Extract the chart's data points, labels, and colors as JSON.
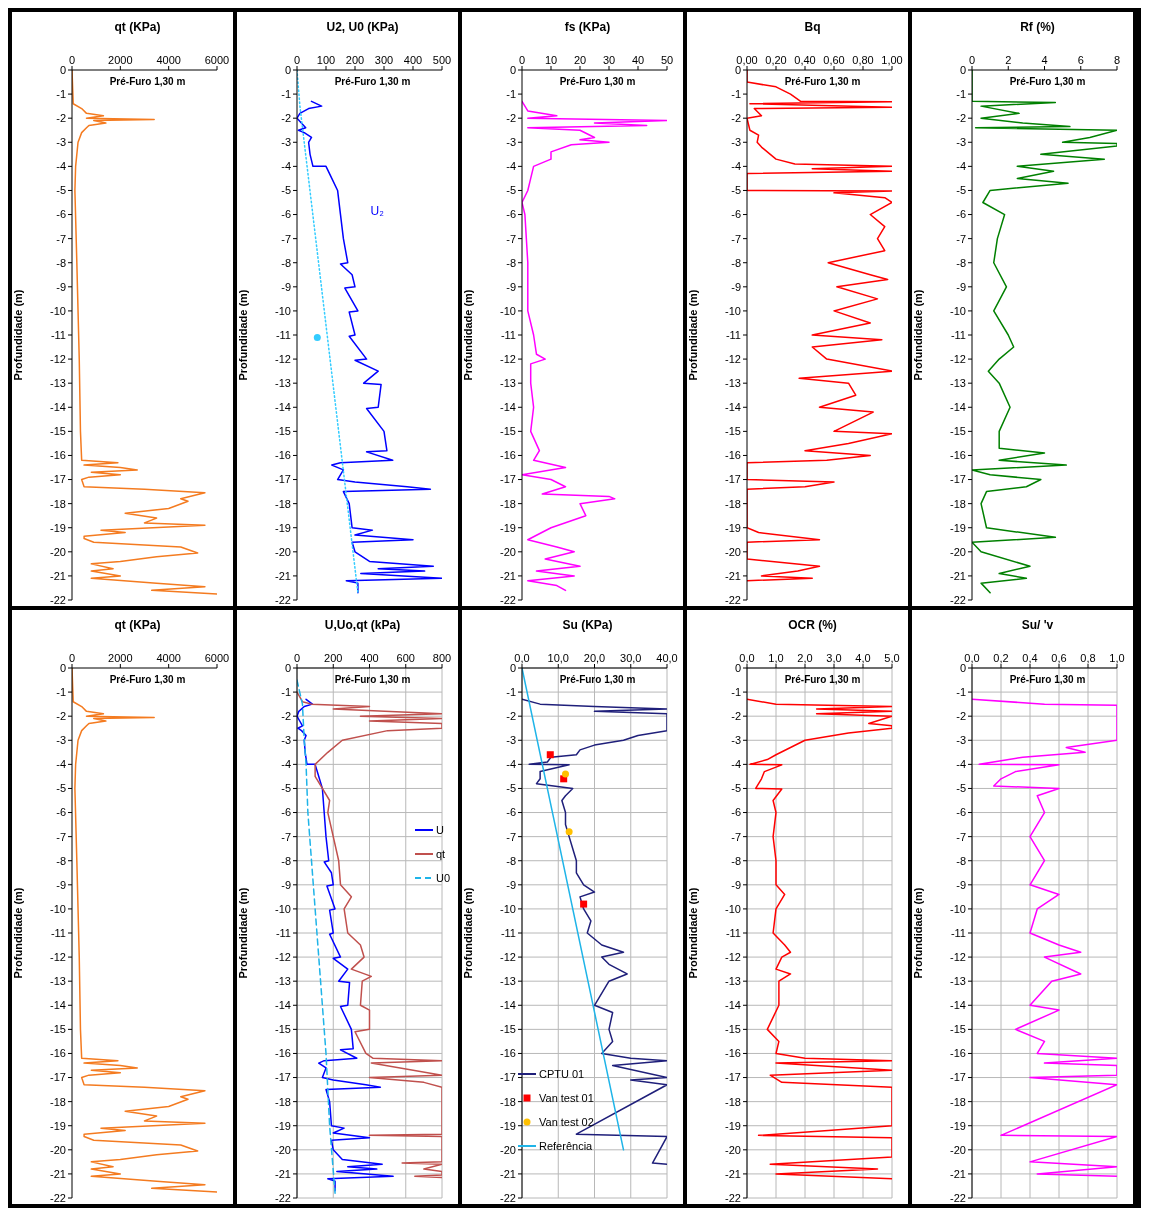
{
  "chart_data": [
    {
      "type": "line",
      "title": "qt (KPa)",
      "ylabel": "Profundidade (m)",
      "annotations": [
        "Pré-Furo 1,30 m"
      ],
      "xlim": [
        0,
        6000
      ],
      "xticks": [
        0,
        2000,
        4000,
        6000
      ],
      "ylim": [
        -22,
        0
      ],
      "yticks": [
        0,
        -1,
        -2,
        -3,
        -4,
        -5,
        -6,
        -7,
        -8,
        -9,
        -10,
        -11,
        -12,
        -13,
        -14,
        -15,
        -16,
        -17,
        -18,
        -19,
        -20,
        -21,
        -22
      ],
      "series": [
        {
          "color": "#f47b20",
          "x": [
            0,
            50,
            400,
            600,
            1300,
            600,
            3400,
            900,
            1400,
            700,
            600,
            400,
            250,
            150,
            120,
            200,
            300,
            350,
            400,
            1900,
            500,
            2000,
            2700,
            800,
            2000,
            700,
            400,
            500,
            3000,
            5500,
            4500,
            4800,
            4000,
            2200,
            3500,
            3000,
            5500,
            1200,
            2200,
            500,
            500,
            900,
            4500,
            5200,
            3500,
            2000,
            800,
            1700,
            800,
            2000,
            800,
            3500,
            5500,
            3300,
            6000
          ],
          "values": [
            0,
            -1.4,
            -1.6,
            -1.8,
            -1.9,
            -2.0,
            -2.05,
            -2.1,
            -2.2,
            -2.3,
            -2.4,
            -2.6,
            -3,
            -4,
            -5,
            -8,
            -12,
            -15,
            -16.2,
            -16.3,
            -16.4,
            -16.5,
            -16.6,
            -16.7,
            -16.8,
            -16.9,
            -17.0,
            -17.3,
            -17.4,
            -17.55,
            -17.8,
            -17.9,
            -18.2,
            -18.4,
            -18.6,
            -18.8,
            -18.9,
            -19.1,
            -19.2,
            -19.35,
            -19.45,
            -19.6,
            -19.8,
            -20.05,
            -20.2,
            -20.4,
            -20.5,
            -20.7,
            -20.8,
            -21.0,
            -21.1,
            -21.3,
            -21.45,
            -21.6,
            -21.75
          ]
        }
      ]
    },
    {
      "type": "line",
      "title": "U2, U0 (KPa)",
      "ylabel": "Profundidade (m)",
      "annotations": [
        "Pré-Furo 1,30 m"
      ],
      "xlim": [
        0,
        500
      ],
      "xticks": [
        0,
        100,
        200,
        300,
        400,
        500
      ],
      "ylim": [
        -22,
        0
      ],
      "yticks": [
        0,
        -1,
        -2,
        -3,
        -4,
        -5,
        -6,
        -7,
        -8,
        -9,
        -10,
        -11,
        -12,
        -13,
        -14,
        -15,
        -16,
        -17,
        -18,
        -19,
        -20,
        -21,
        -22
      ],
      "series": [
        {
          "name": "U₂",
          "color": "#0000ff",
          "x": [
            50,
            85,
            40,
            10,
            0,
            15,
            30,
            5,
            25,
            50,
            40,
            45,
            55,
            100,
            120,
            140,
            150,
            160,
            175,
            150,
            190,
            200,
            165,
            210,
            180,
            200,
            180,
            240,
            200,
            280,
            230,
            290,
            280,
            240,
            300,
            310,
            240,
            330,
            150,
            120,
            160,
            140,
            200,
            380,
            460,
            160,
            180,
            190,
            260,
            200,
            400,
            190,
            200,
            250,
            470,
            280,
            440,
            220,
            500,
            170,
            210,
            210
          ],
          "values": [
            -1.3,
            -1.5,
            -1.6,
            -1.8,
            -2.0,
            -2.2,
            -2.4,
            -2.5,
            -2.6,
            -2.8,
            -3.0,
            -3.5,
            -4.0,
            -4.0,
            -4.5,
            -5.0,
            -6.0,
            -7.0,
            -8.0,
            -8.05,
            -8.5,
            -9.0,
            -9.05,
            -10.0,
            -10.05,
            -11.0,
            -11.05,
            -12.0,
            -12.05,
            -12.5,
            -13.0,
            -13.05,
            -14.0,
            -14.05,
            -15.0,
            -15.8,
            -15.85,
            -16.2,
            -16.3,
            -16.4,
            -16.6,
            -17.0,
            -17.1,
            -17.3,
            -17.4,
            -17.5,
            -18.0,
            -19.0,
            -19.1,
            -19.3,
            -19.5,
            -19.6,
            -20.0,
            -20.4,
            -20.6,
            -20.7,
            -20.8,
            -20.9,
            -21.1,
            -21.2,
            -21.3,
            -21.7
          ]
        },
        {
          "color": "#33ccff",
          "line_style": "dotted",
          "x": [
            0,
            10,
            210
          ],
          "values": [
            0,
            -1.5,
            -21.7
          ]
        },
        {
          "type": "scatter",
          "marker": "circle",
          "color": "#33ccff",
          "x": [
            70
          ],
          "values": [
            -11.1
          ]
        }
      ]
    },
    {
      "type": "line",
      "title": "fs (KPa)",
      "ylabel": "Profundidade (m)",
      "annotations": [
        "Pré-Furo 1,30 m"
      ],
      "xlim": [
        0,
        50
      ],
      "xticks": [
        0,
        10,
        20,
        30,
        40,
        50
      ],
      "ylim": [
        -22,
        0
      ],
      "yticks": [
        0,
        -1,
        -2,
        -3,
        -4,
        -5,
        -6,
        -7,
        -8,
        -9,
        -10,
        -11,
        -12,
        -13,
        -14,
        -15,
        -16,
        -17,
        -18,
        -19,
        -20,
        -21,
        -22
      ],
      "series": [
        {
          "color": "#ff00ff",
          "x": [
            0,
            2,
            12,
            2,
            50,
            25,
            43,
            2,
            20,
            25,
            20,
            30,
            17,
            10,
            10,
            4,
            3,
            2,
            0,
            1,
            2,
            2,
            4,
            5,
            8,
            3,
            3,
            4,
            3,
            6,
            4,
            15,
            0,
            10,
            15,
            7,
            30,
            32,
            20,
            22,
            10,
            2,
            12,
            18,
            8,
            20,
            5,
            18,
            2,
            12,
            15
          ],
          "values": [
            -1.3,
            -1.7,
            -1.9,
            -2.0,
            -2.1,
            -2.2,
            -2.3,
            -2.4,
            -2.5,
            -2.8,
            -2.9,
            -3.0,
            -3.1,
            -3.4,
            -3.7,
            -4,
            -4.5,
            -5,
            -5.5,
            -6,
            -8,
            -10,
            -11,
            -11.8,
            -12,
            -12.2,
            -13,
            -14,
            -15,
            -15.8,
            -16.2,
            -16.5,
            -16.8,
            -17,
            -17.3,
            -17.6,
            -17.7,
            -17.8,
            -18,
            -18.5,
            -19,
            -19.5,
            -19.8,
            -20,
            -20.3,
            -20.6,
            -20.8,
            -21,
            -21.2,
            -21.4,
            -21.6
          ]
        }
      ]
    },
    {
      "type": "line",
      "title": "Bq",
      "ylabel": "Profundidade (m)",
      "annotations": [
        "Pré-Furo 1,30 m"
      ],
      "xlim": [
        0,
        1
      ],
      "xticks": [
        {
          "value": 0,
          "label": "0,00"
        },
        {
          "value": 0.2,
          "label": "0,20"
        },
        {
          "value": 0.4,
          "label": "0,40"
        },
        {
          "value": 0.6,
          "label": "0,60"
        },
        {
          "value": 0.8,
          "label": "0,80"
        },
        {
          "value": 1,
          "label": "1,00"
        }
      ],
      "ylim": [
        -22,
        0
      ],
      "yticks": [
        0,
        -1,
        -2,
        -3,
        -4,
        -5,
        -6,
        -7,
        -8,
        -9,
        -10,
        -11,
        -12,
        -13,
        -14,
        -15,
        -16,
        -17,
        -18,
        -19,
        -20,
        -21,
        -22
      ],
      "series": [
        {
          "color": "#ff0000",
          "x": [
            0,
            0,
            0.2,
            0.3,
            0.37,
            1.0,
            0.02,
            1.0,
            0.05,
            0.1,
            0,
            0.02,
            0.08,
            0.07,
            0.1,
            0.2,
            0.33,
            1.0,
            0.45,
            1.0,
            0,
            0,
            1.0,
            0.6,
            0.95,
            1.0,
            0.85,
            0.95,
            0.9,
            0.95,
            0.56,
            0.85,
            0.97,
            0.62,
            0.9,
            0.6,
            0.85,
            0.45,
            0.93,
            0.45,
            0.55,
            1.0,
            0.36,
            0.7,
            0.75,
            0.5,
            0.87,
            0.6,
            1.0,
            0.7,
            0.4,
            0.85,
            0.55,
            0,
            0,
            0.6,
            0.4,
            0,
            0,
            0.08,
            0.5,
            0,
            0,
            0.5,
            0.35,
            0.1,
            0.45,
            0
          ],
          "values": [
            0,
            -0.5,
            -0.7,
            -1.0,
            -1.3,
            -1.32,
            -1.4,
            -1.55,
            -1.6,
            -1.9,
            -2,
            -2.5,
            -2.7,
            -3.0,
            -3.2,
            -3.7,
            -3.9,
            -4.0,
            -4.1,
            -4.2,
            -4.3,
            -5,
            -5.02,
            -5.1,
            -5.3,
            -5.5,
            -6,
            -6.5,
            -7,
            -7.5,
            -8,
            -8.5,
            -8.7,
            -9,
            -9.5,
            -10,
            -10.5,
            -11,
            -11.2,
            -11.5,
            -12,
            -12.5,
            -12.8,
            -13,
            -13.5,
            -14,
            -14.2,
            -15,
            -15.1,
            -15.5,
            -15.8,
            -16,
            -16.2,
            -16.3,
            -17,
            -17.1,
            -17.3,
            -17.4,
            -19,
            -19.2,
            -19.5,
            -19.6,
            -20.3,
            -20.6,
            -20.8,
            -21,
            -21.1,
            -21.2
          ]
        }
      ]
    },
    {
      "type": "line",
      "title": "Rf (%)",
      "ylabel": "Profundidade (m)",
      "annotations": [
        "Pré-Furo 1,30 m"
      ],
      "xlim": [
        0,
        8
      ],
      "xticks": [
        0,
        2,
        4,
        6,
        8
      ],
      "ylim": [
        -22,
        0
      ],
      "yticks": [
        0,
        -1,
        -2,
        -3,
        -4,
        -5,
        -6,
        -7,
        -8,
        -9,
        -10,
        -11,
        -12,
        -13,
        -14,
        -15,
        -16,
        -17,
        -18,
        -19,
        -20,
        -21,
        -22
      ],
      "series": [
        {
          "color": "#008000",
          "x": [
            0,
            0,
            4.6,
            0.5,
            2.6,
            0.5,
            2.8,
            5.4,
            0.2,
            8,
            6.5,
            5,
            8,
            8,
            3.8,
            7.3,
            2.5,
            4.5,
            2.5,
            5.3,
            1,
            0.6,
            1.8,
            1.4,
            1.2,
            1.9,
            1.2,
            2.0,
            2.3,
            1.5,
            0.9,
            1.5,
            2.1,
            1.5,
            1.5,
            4,
            1.5,
            5.2,
            0,
            1,
            3.8,
            3.0,
            0.8,
            0.5,
            0.8,
            4.6,
            0,
            0.5,
            3.2,
            1.5,
            3.0,
            0.5,
            1.0
          ],
          "values": [
            0,
            -1.3,
            -1.35,
            -1.5,
            -1.8,
            -2.0,
            -2.2,
            -2.35,
            -2.4,
            -2.5,
            -2.8,
            -3.0,
            -3.05,
            -3.15,
            -3.5,
            -3.7,
            -4.0,
            -4.2,
            -4.5,
            -4.7,
            -5.0,
            -5.5,
            -6,
            -7,
            -8,
            -9,
            -10,
            -11,
            -11.5,
            -12,
            -12.5,
            -13,
            -14,
            -15,
            -15.7,
            -15.9,
            -16.2,
            -16.4,
            -16.6,
            -16.8,
            -17.0,
            -17.3,
            -17.5,
            -18,
            -19,
            -19.4,
            -19.6,
            -20,
            -20.6,
            -20.9,
            -21.1,
            -21.3,
            -21.7
          ]
        }
      ]
    },
    {
      "type": "line",
      "title": "qt (KPa)",
      "ylabel": "Profundidade (m)",
      "annotations": [
        "Pré-Furo 1,30 m"
      ],
      "xlim": [
        0,
        6000
      ],
      "xticks": [
        0,
        2000,
        4000,
        6000
      ],
      "ylim": [
        -22,
        0
      ],
      "yticks": [
        0,
        -1,
        -2,
        -3,
        -4,
        -5,
        -6,
        -7,
        -8,
        -9,
        -10,
        -11,
        -12,
        -13,
        -14,
        -15,
        -16,
        -17,
        -18,
        -19,
        -20,
        -21,
        -22
      ],
      "series": [
        {
          "color": "#f47b20",
          "x": [
            0,
            50,
            400,
            600,
            1300,
            600,
            3400,
            900,
            1400,
            700,
            600,
            400,
            250,
            150,
            120,
            200,
            300,
            350,
            400,
            1900,
            500,
            2000,
            2700,
            800,
            2000,
            700,
            400,
            500,
            3000,
            5500,
            4500,
            4800,
            4000,
            2200,
            3500,
            3000,
            5500,
            1200,
            2200,
            500,
            500,
            900,
            4500,
            5200,
            3500,
            2000,
            800,
            1700,
            800,
            2000,
            800,
            3500,
            5500,
            3300,
            6000
          ],
          "values": [
            0,
            -1.4,
            -1.6,
            -1.8,
            -1.9,
            -2.0,
            -2.05,
            -2.1,
            -2.2,
            -2.3,
            -2.4,
            -2.6,
            -3,
            -4,
            -5,
            -8,
            -12,
            -15,
            -16.2,
            -16.3,
            -16.4,
            -16.5,
            -16.6,
            -16.7,
            -16.8,
            -16.9,
            -17.0,
            -17.3,
            -17.4,
            -17.55,
            -17.8,
            -17.9,
            -18.2,
            -18.4,
            -18.6,
            -18.8,
            -18.9,
            -19.1,
            -19.2,
            -19.35,
            -19.45,
            -19.6,
            -19.8,
            -20.05,
            -20.2,
            -20.4,
            -20.5,
            -20.7,
            -20.8,
            -21.0,
            -21.1,
            -21.3,
            -21.45,
            -21.6,
            -21.75
          ]
        }
      ]
    },
    {
      "type": "line",
      "title": "U,Uo,qt (kPa)",
      "ylabel": "Profundidade (m)",
      "annotations": [
        "Pré-Furo 1,30 m"
      ],
      "xlim": [
        0,
        800
      ],
      "xticks": [
        0,
        200,
        400,
        600,
        800
      ],
      "ylim": [
        -22,
        0
      ],
      "yticks": [
        0,
        -1,
        -2,
        -3,
        -4,
        -5,
        -6,
        -7,
        -8,
        -9,
        -10,
        -11,
        -12,
        -13,
        -14,
        -15,
        -16,
        -17,
        -18,
        -19,
        -20,
        -21,
        -22
      ],
      "grid": true,
      "legend": "right",
      "series": [
        {
          "name": "U",
          "color": "#0000ff",
          "x": [
            50,
            85,
            40,
            10,
            0,
            15,
            30,
            5,
            25,
            50,
            40,
            45,
            55,
            100,
            120,
            140,
            150,
            160,
            175,
            150,
            190,
            200,
            165,
            210,
            180,
            200,
            180,
            240,
            200,
            280,
            230,
            290,
            280,
            240,
            300,
            310,
            240,
            330,
            150,
            120,
            160,
            140,
            200,
            380,
            460,
            160,
            180,
            190,
            260,
            200,
            400,
            190,
            200,
            250,
            470,
            280,
            440,
            220,
            530,
            170,
            210,
            210
          ],
          "values": [
            -1.3,
            -1.5,
            -1.6,
            -1.8,
            -2.0,
            -2.2,
            -2.4,
            -2.5,
            -2.6,
            -2.8,
            -3.0,
            -3.5,
            -4.0,
            -4.0,
            -4.5,
            -5.0,
            -6.0,
            -7.0,
            -8.0,
            -8.05,
            -8.5,
            -9.0,
            -9.05,
            -10.0,
            -10.05,
            -11.0,
            -11.05,
            -12.0,
            -12.05,
            -12.5,
            -13.0,
            -13.05,
            -14.0,
            -14.05,
            -15.0,
            -15.8,
            -15.85,
            -16.2,
            -16.3,
            -16.4,
            -16.6,
            -17.0,
            -17.1,
            -17.3,
            -17.4,
            -17.5,
            -18.0,
            -19.0,
            -19.1,
            -19.3,
            -19.5,
            -19.6,
            -20.0,
            -20.4,
            -20.6,
            -20.7,
            -20.8,
            -20.9,
            -21.1,
            -21.2,
            -21.3,
            -21.7
          ]
        },
        {
          "name": "qt",
          "color": "#c0504d",
          "x": [
            0,
            30,
            80,
            400,
            200,
            800,
            350,
            800,
            400,
            800,
            800,
            500,
            250,
            170,
            100,
            100,
            140,
            180,
            170,
            200,
            230,
            240,
            300,
            260,
            280,
            350,
            370,
            300,
            410,
            360,
            350,
            400,
            400,
            320,
            380,
            420,
            800,
            410,
            800,
            400,
            700,
            800,
            null,
            800,
            400,
            800,
            null,
            800,
            580,
            800,
            700,
            800,
            null,
            800,
            650,
            800
          ],
          "values": [
            -1.0,
            -1.4,
            -1.5,
            -1.6,
            -1.7,
            -1.9,
            -2.0,
            -2.1,
            -2.2,
            -2.3,
            -2.5,
            -2.6,
            -3,
            -3.5,
            -4,
            -4.5,
            -5,
            -5.5,
            -6,
            -7,
            -8,
            -9,
            -9.5,
            -10,
            -11,
            -11.5,
            -12,
            -12.5,
            -12.8,
            -13,
            -14,
            -14.2,
            -15,
            -15.1,
            -16,
            -16.2,
            -16.3,
            -16.4,
            -16.9,
            -17,
            -17.2,
            -17.4,
            null,
            -19.35,
            -19.4,
            -19.45,
            null,
            -20.5,
            -20.55,
            -20.6,
            -20.8,
            -20.9,
            null,
            -21.05,
            -21.1,
            -21.15
          ]
        },
        {
          "name": "U0",
          "color": "#1fb4e8",
          "line_style": "dashed",
          "x": [
            0,
            30,
            40,
            50,
            60,
            80,
            100,
            120,
            140,
            160,
            180,
            210
          ],
          "values": [
            -0.5,
            -1.5,
            -3,
            -4,
            -6,
            -8,
            -10,
            -12,
            -14,
            -16,
            -19,
            -21.8
          ]
        }
      ]
    },
    {
      "type": "line",
      "title": "Su (KPa)",
      "ylabel": "Profundidade (m)",
      "annotations": [
        "Pré-Furo 1,30 m"
      ],
      "xlim": [
        0,
        40
      ],
      "xticks": [
        {
          "value": 0,
          "label": "0,0"
        },
        {
          "value": 10,
          "label": "10,0"
        },
        {
          "value": 20,
          "label": "20,0"
        },
        {
          "value": 30,
          "label": "30,0"
        },
        {
          "value": 40,
          "label": "40,0"
        }
      ],
      "ylim": [
        -22,
        0
      ],
      "yticks": [
        0,
        -1,
        -2,
        -3,
        -4,
        -5,
        -6,
        -7,
        -8,
        -9,
        -10,
        -11,
        -12,
        -13,
        -14,
        -15,
        -16,
        -17,
        -18,
        -19,
        -20,
        -21,
        -22
      ],
      "grid": true,
      "legend": "bottom left",
      "series": [
        {
          "name": "CPTU 01",
          "color": "#1f1f7a",
          "x": [
            0,
            5,
            20,
            40,
            20,
            40,
            40,
            32,
            28,
            20,
            16,
            15,
            8,
            7,
            2,
            13,
            5,
            5,
            4,
            14,
            12,
            11,
            12,
            12,
            13,
            14,
            15,
            15,
            17,
            20,
            16,
            17,
            19,
            18,
            22,
            28,
            22,
            24,
            29,
            24,
            20,
            25,
            24,
            25,
            22,
            30,
            40,
            25,
            40,
            30,
            40,
            null,
            15,
            40,
            null,
            36,
            40
          ],
          "values": [
            -1.3,
            -1.5,
            -1.6,
            -1.7,
            -1.8,
            -1.9,
            -2.6,
            -2.8,
            -3.0,
            -3.2,
            -3.4,
            -3.6,
            -3.7,
            -3.9,
            -4.0,
            -4.02,
            -4.3,
            -4.6,
            -4.8,
            -5.0,
            -5.3,
            -5.5,
            -6,
            -6.5,
            -7,
            -7.5,
            -8,
            -8.5,
            -9,
            -9.3,
            -9.5,
            -10,
            -10.5,
            -11,
            -11.5,
            -11.8,
            -12,
            -12.3,
            -12.7,
            -13,
            -14,
            -14.3,
            -15,
            -15.5,
            -16,
            -16.2,
            -16.3,
            -16.5,
            -17,
            -17.1,
            -17.3,
            null,
            -19.35,
            -19.45,
            null,
            -20.55,
            -20.6
          ]
        },
        {
          "name": "Van test 01",
          "type": "scatter",
          "marker": "square",
          "color": "#ff0000",
          "x": [
            7.8,
            11.5,
            17.0
          ],
          "values": [
            -3.6,
            -4.6,
            -9.8
          ]
        },
        {
          "name": "Van test 02",
          "type": "scatter",
          "marker": "circle",
          "color": "#ffc000",
          "x": [
            12.0,
            13.0
          ],
          "values": [
            -4.4,
            -6.8
          ]
        },
        {
          "name": "Referência",
          "color": "#1fb4e8",
          "x": [
            0,
            28
          ],
          "values": [
            0,
            -20
          ]
        }
      ]
    },
    {
      "type": "line",
      "title": "OCR (%)",
      "ylabel": "Profundidade (m)",
      "annotations": [
        "Pré-Furo 1,30 m"
      ],
      "xlim": [
        0,
        5
      ],
      "xticks": [
        {
          "value": 0,
          "label": "0,0"
        },
        {
          "value": 1,
          "label": "1,0"
        },
        {
          "value": 2,
          "label": "2,0"
        },
        {
          "value": 3,
          "label": "3,0"
        },
        {
          "value": 4,
          "label": "4,0"
        },
        {
          "value": 5,
          "label": "5,0"
        }
      ],
      "ylim": [
        -22,
        0
      ],
      "yticks": [
        0,
        -1,
        -2,
        -3,
        -4,
        -5,
        -6,
        -7,
        -8,
        -9,
        -10,
        -11,
        -12,
        -13,
        -14,
        -15,
        -16,
        -17,
        -18,
        -19,
        -20,
        -21,
        -22
      ],
      "grid": true,
      "series": [
        {
          "color": "#ff0000",
          "x": [
            0,
            1.0,
            5,
            2.4,
            5,
            2.4,
            5,
            4.2,
            5,
            5,
            3.5,
            2,
            1.5,
            1.0,
            0.7,
            0.1,
            1.2,
            0.6,
            0.5,
            0.3,
            1.2,
            0.9,
            1.0,
            0.9,
            1.0,
            1.0,
            1.3,
            1.0,
            0.9,
            1.3,
            1.5,
            1.2,
            1.0,
            1.5,
            1.1,
            1.1,
            0.7,
            1.1,
            1.0,
            2,
            5,
            1.0,
            5,
            0.8,
            1.2,
            5,
            null,
            5,
            2.8,
            0.4,
            5,
            null,
            5,
            0.8,
            4.5,
            1.0,
            5
          ],
          "values": [
            -1.3,
            -1.5,
            -1.6,
            -1.7,
            -1.8,
            -1.9,
            -2.0,
            -2.3,
            -2.4,
            -2.5,
            -2.7,
            -3,
            -3.3,
            -3.6,
            -3.8,
            -4.0,
            -4.02,
            -4.3,
            -4.6,
            -5.0,
            -5.02,
            -5.5,
            -6,
            -7,
            -8,
            -9,
            -9.4,
            -10,
            -11,
            -11.5,
            -11.8,
            -12,
            -12.5,
            -12.7,
            -13,
            -14,
            -15,
            -15.5,
            -16,
            -16.2,
            -16.3,
            -16.4,
            -16.7,
            -16.9,
            -17.2,
            -17.4,
            null,
            -19.0,
            -19.2,
            -19.4,
            -19.5,
            null,
            -20.3,
            -20.6,
            -20.8,
            -21.0,
            -21.2
          ]
        }
      ]
    },
    {
      "type": "line",
      "title": "Su/ 'v",
      "ylabel": "Profundidade (m)",
      "annotations": [
        "Pré-Furo 1,30 m"
      ],
      "xlim": [
        0,
        1
      ],
      "xticks": [
        {
          "value": 0,
          "label": "0,0"
        },
        {
          "value": 0.2,
          "label": "0,2"
        },
        {
          "value": 0.4,
          "label": "0,4"
        },
        {
          "value": 0.6,
          "label": "0,6"
        },
        {
          "value": 0.8,
          "label": "0,8"
        },
        {
          "value": 1,
          "label": "1,0"
        }
      ],
      "ylim": [
        -22,
        0
      ],
      "yticks": [
        0,
        -1,
        -2,
        -3,
        -4,
        -5,
        -6,
        -7,
        -8,
        -9,
        -10,
        -11,
        -12,
        -13,
        -14,
        -15,
        -16,
        -17,
        -18,
        -19,
        -20,
        -21,
        -22
      ],
      "grid": true,
      "series": [
        {
          "color": "#ff00ff",
          "x": [
            0,
            0.5,
            1.0,
            null,
            1.0,
            0.65,
            0.78,
            0.35,
            0.05,
            0.6,
            0.3,
            0.2,
            0.15,
            0.6,
            0.45,
            0.5,
            0.4,
            0.5,
            0.4,
            0.6,
            0.45,
            0.4,
            0.6,
            0.75,
            0.5,
            0.75,
            0.55,
            0.4,
            0.6,
            0.3,
            0.5,
            0.45,
            1.0,
            0.5,
            1.0,
            null,
            1.0,
            0.4,
            1.0,
            null,
            0.2,
            1.0,
            null,
            0.4,
            1.0,
            0.45,
            1.0
          ],
          "values": [
            -1.3,
            -1.5,
            -1.55,
            null,
            -3.0,
            -3.3,
            -3.5,
            -3.7,
            -4.0,
            -4.02,
            -4.3,
            -4.6,
            -4.9,
            -5.0,
            -5.3,
            -6,
            -7,
            -8,
            -9,
            -9.4,
            -10,
            -11,
            -11.5,
            -11.8,
            -12,
            -12.7,
            -13,
            -14,
            -14.2,
            -15,
            -15.5,
            -16,
            -16.2,
            -16.4,
            -16.5,
            null,
            -16.9,
            -17,
            -17.3,
            null,
            -19.4,
            -19.45,
            null,
            -20.5,
            -20.7,
            -21,
            -21.1
          ]
        }
      ]
    }
  ]
}
